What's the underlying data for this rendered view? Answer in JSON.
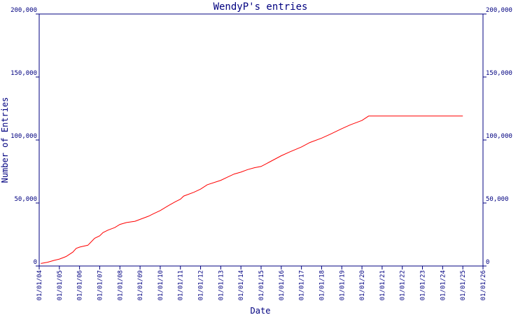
{
  "chart_data": {
    "type": "line",
    "title": "WendyP's entries",
    "xlabel": "Date",
    "ylabel": "Number of Entries",
    "ylim": [
      0,
      200000
    ],
    "xlim": [
      "2004-01-01",
      "2026-01-01"
    ],
    "y_ticks": [
      0,
      50000,
      100000,
      150000,
      200000
    ],
    "y_tick_labels": [
      "0",
      "50,000",
      "100,000",
      "150,000",
      "200,000"
    ],
    "x_tick_labels": [
      "01/01/04",
      "01/01/05",
      "01/01/06",
      "01/01/07",
      "01/01/08",
      "01/01/09",
      "01/01/10",
      "01/01/11",
      "01/01/12",
      "01/01/13",
      "01/01/14",
      "01/01/15",
      "01/01/16",
      "01/01/17",
      "01/01/18",
      "01/01/19",
      "01/01/20",
      "01/01/21",
      "01/01/22",
      "01/01/23",
      "01/01/24",
      "01/01/25",
      "01/01/26"
    ],
    "grid": false,
    "colors": {
      "frame": "#000080",
      "line": "#ff0000"
    },
    "series": [
      {
        "color": "#ff0000",
        "points": [
          [
            "2004-02-01",
            2000
          ],
          [
            "2004-06-01",
            3000
          ],
          [
            "2004-10-01",
            4500
          ],
          [
            "2005-01-01",
            5500
          ],
          [
            "2005-05-01",
            7500
          ],
          [
            "2005-09-01",
            11000
          ],
          [
            "2005-11-01",
            14000
          ],
          [
            "2006-01-01",
            15000
          ],
          [
            "2006-06-01",
            16500
          ],
          [
            "2006-10-01",
            22000
          ],
          [
            "2007-01-01",
            24000
          ],
          [
            "2007-03-01",
            26500
          ],
          [
            "2007-06-01",
            28500
          ],
          [
            "2007-10-01",
            30500
          ],
          [
            "2008-01-01",
            33000
          ],
          [
            "2008-05-01",
            34500
          ],
          [
            "2008-10-01",
            35500
          ],
          [
            "2009-01-01",
            37000
          ],
          [
            "2009-06-01",
            39500
          ],
          [
            "2009-09-01",
            41500
          ],
          [
            "2010-01-01",
            44000
          ],
          [
            "2010-06-01",
            48000
          ],
          [
            "2010-10-01",
            51000
          ],
          [
            "2011-01-01",
            53000
          ],
          [
            "2011-03-01",
            55500
          ],
          [
            "2011-09-01",
            58500
          ],
          [
            "2012-01-01",
            61000
          ],
          [
            "2012-05-01",
            64500
          ],
          [
            "2013-01-01",
            68000
          ],
          [
            "2013-05-01",
            70500
          ],
          [
            "2013-09-01",
            73000
          ],
          [
            "2014-01-01",
            74500
          ],
          [
            "2014-05-01",
            76500
          ],
          [
            "2014-09-01",
            78000
          ],
          [
            "2015-01-01",
            79000
          ],
          [
            "2015-06-01",
            82500
          ],
          [
            "2016-01-01",
            87500
          ],
          [
            "2016-06-01",
            90500
          ],
          [
            "2017-01-01",
            94500
          ],
          [
            "2017-06-01",
            98000
          ],
          [
            "2018-01-01",
            101500
          ],
          [
            "2018-06-01",
            104500
          ],
          [
            "2019-01-01",
            109000
          ],
          [
            "2019-06-01",
            112000
          ],
          [
            "2020-01-01",
            115500
          ],
          [
            "2020-05-01",
            119000
          ],
          [
            "2025-01-01",
            119000
          ]
        ]
      }
    ]
  }
}
